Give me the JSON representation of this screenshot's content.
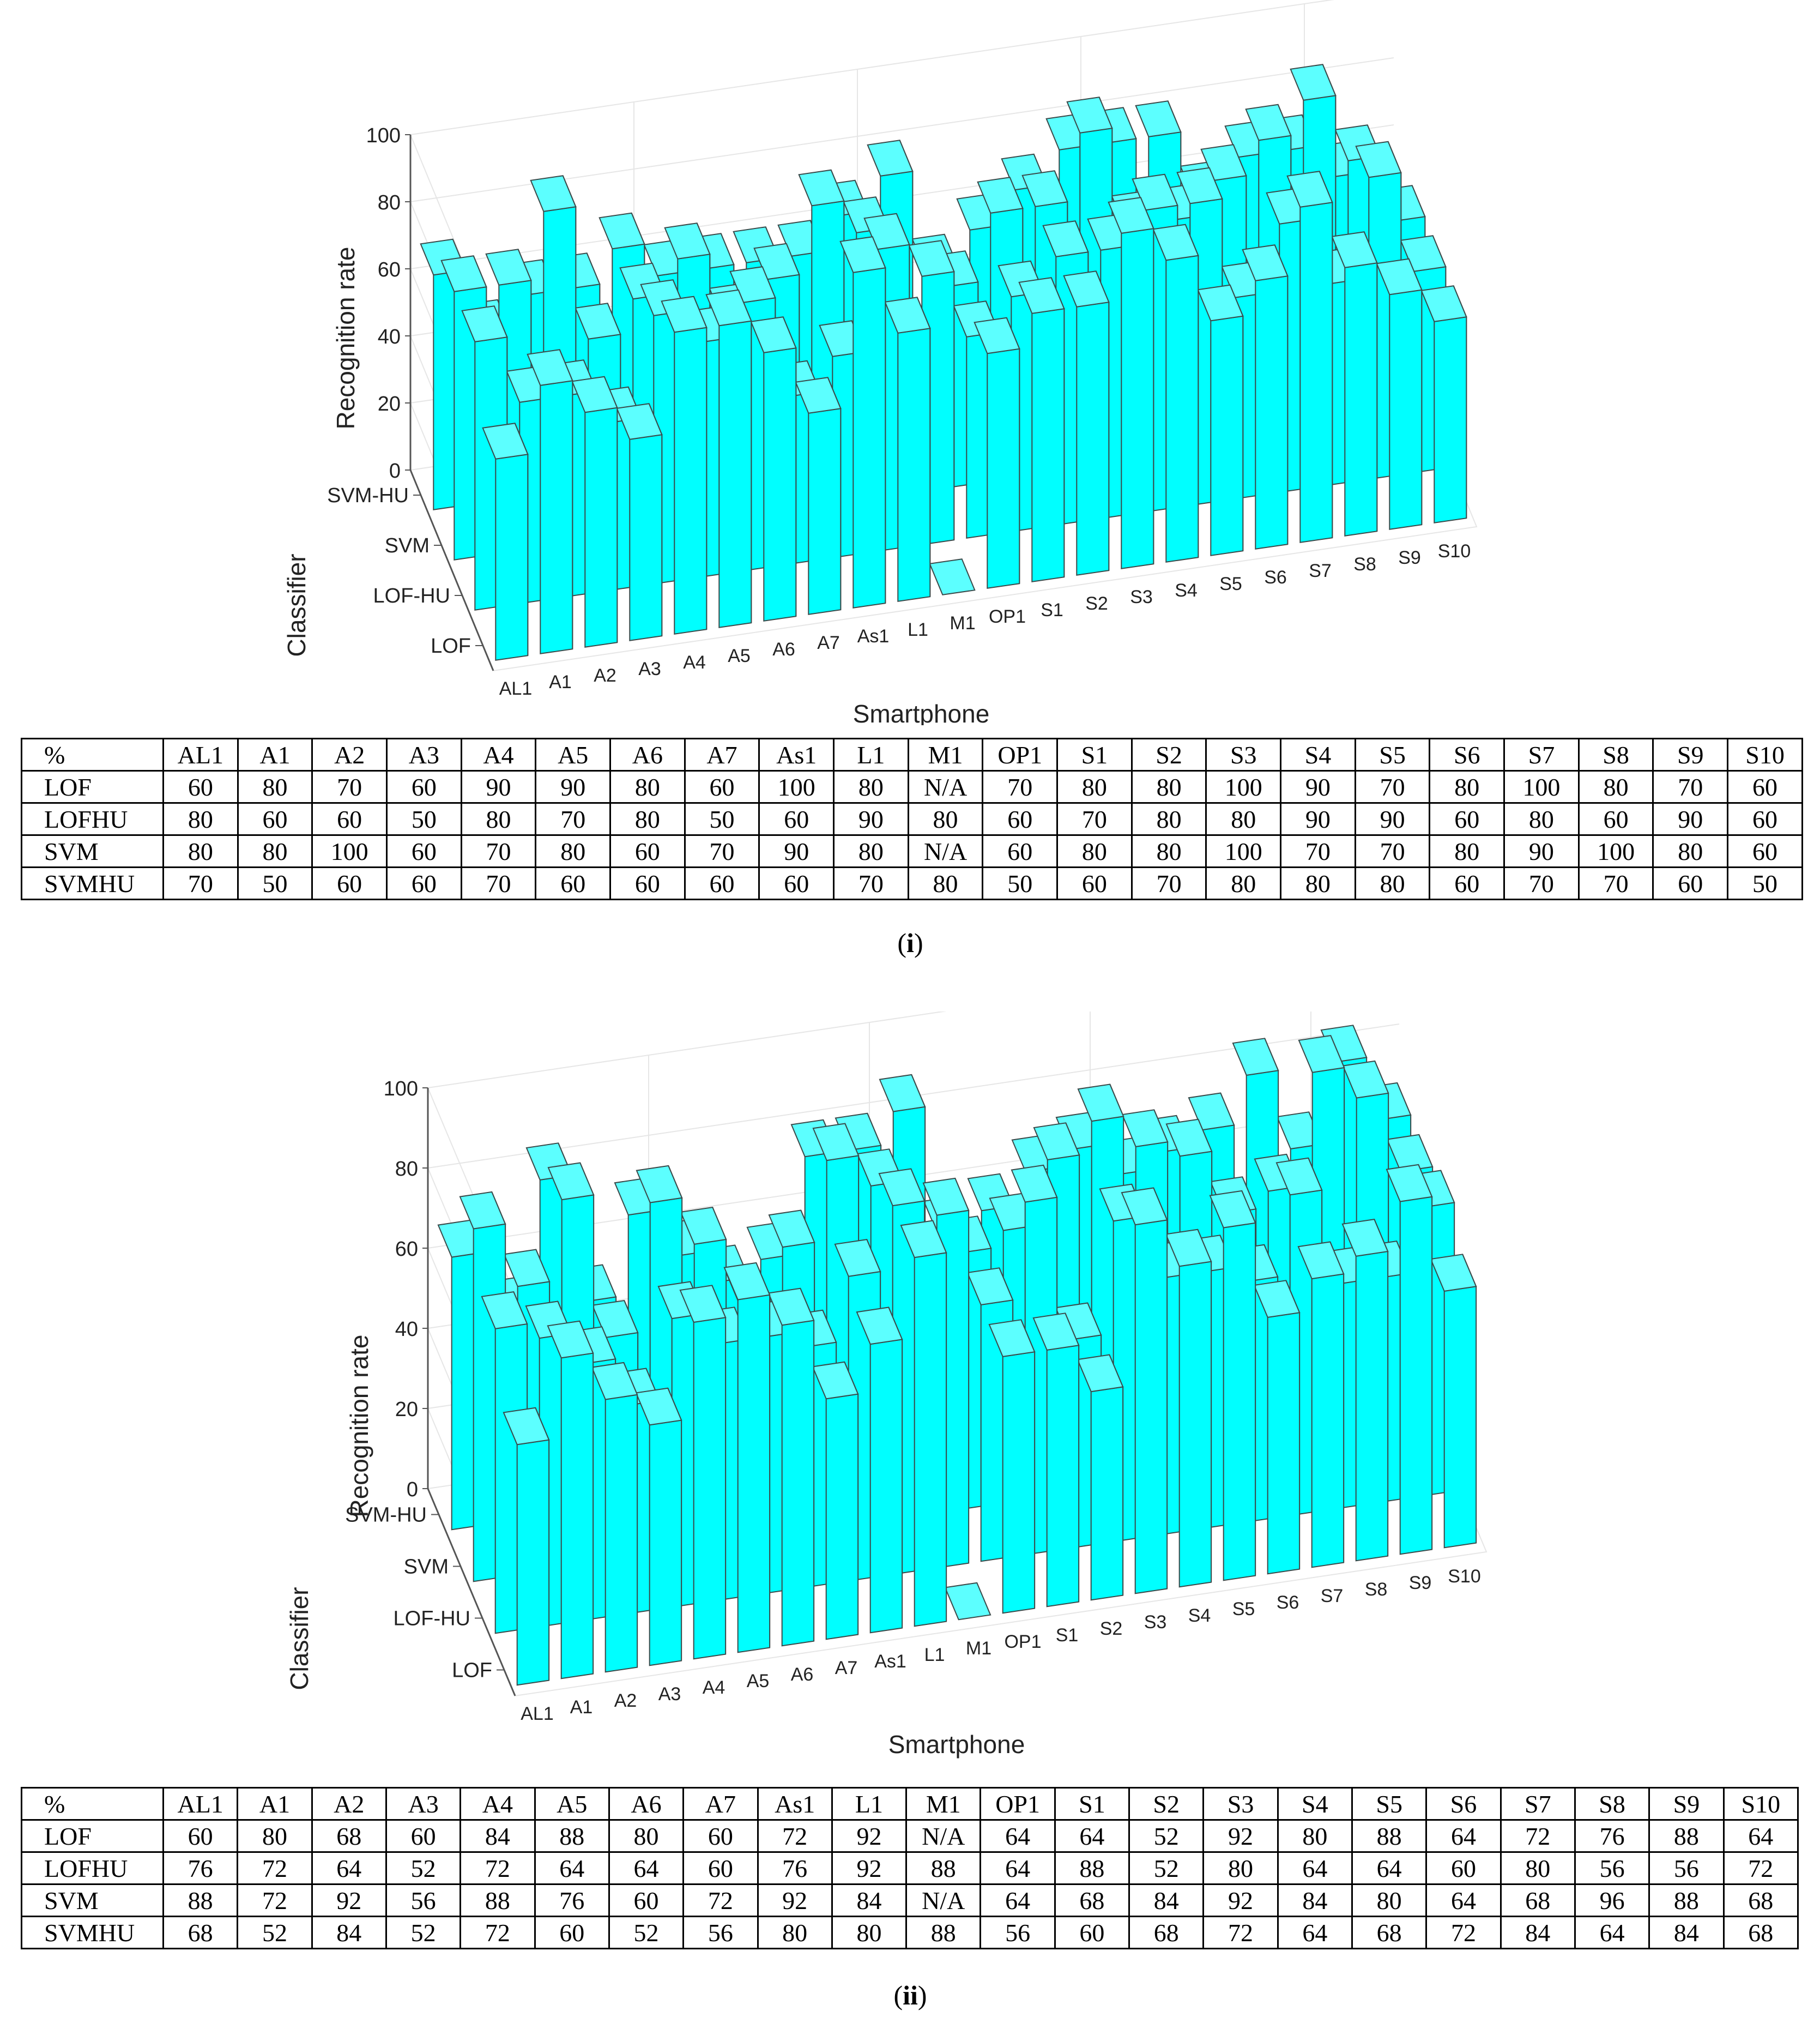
{
  "chart_data": [
    {
      "type": "bar3d",
      "panel": "i",
      "xlabel": "Smartphone",
      "ylabel": "Classifier",
      "zlabel": "Recognition rate",
      "zlim": [
        0,
        100
      ],
      "zticks": [
        "0",
        "20",
        "40",
        "60",
        "80",
        "100"
      ],
      "categories": [
        "AL1",
        "A1",
        "A2",
        "A3",
        "A4",
        "A5",
        "A6",
        "A7",
        "As1",
        "L1",
        "M1",
        "OP1",
        "S1",
        "S2",
        "S3",
        "S4",
        "S5",
        "S6",
        "S7",
        "S8",
        "S9",
        "S10"
      ],
      "classifier_ticks": [
        "LOF",
        "LOF-HU",
        "SVM",
        "SVM-HU"
      ],
      "series": [
        {
          "name": "LOF",
          "values": [
            60,
            80,
            70,
            60,
            90,
            90,
            80,
            60,
            100,
            80,
            null,
            70,
            80,
            80,
            100,
            90,
            70,
            80,
            100,
            80,
            70,
            60
          ]
        },
        {
          "name": "LOFHU",
          "values": [
            80,
            60,
            60,
            50,
            80,
            70,
            80,
            50,
            60,
            90,
            80,
            60,
            70,
            80,
            80,
            90,
            90,
            60,
            80,
            60,
            90,
            60
          ]
        },
        {
          "name": "SVM",
          "values": [
            80,
            80,
            100,
            60,
            70,
            80,
            60,
            70,
            90,
            80,
            null,
            60,
            80,
            80,
            100,
            70,
            70,
            80,
            90,
            100,
            80,
            60
          ]
        },
        {
          "name": "SVMHU",
          "values": [
            70,
            50,
            60,
            60,
            70,
            60,
            60,
            60,
            60,
            70,
            80,
            50,
            60,
            70,
            80,
            80,
            80,
            60,
            70,
            70,
            60,
            50
          ]
        }
      ],
      "caption": "i"
    },
    {
      "type": "bar3d",
      "panel": "ii",
      "xlabel": "Smartphone",
      "ylabel": "Classifier",
      "zlabel": "Recognition rate",
      "zlim": [
        0,
        100
      ],
      "zticks": [
        "0",
        "20",
        "40",
        "60",
        "80",
        "100"
      ],
      "categories": [
        "AL1",
        "A1",
        "A2",
        "A3",
        "A4",
        "A5",
        "A6",
        "A7",
        "As1",
        "L1",
        "M1",
        "OP1",
        "S1",
        "S2",
        "S3",
        "S4",
        "S5",
        "S6",
        "S7",
        "S8",
        "S9",
        "S10"
      ],
      "classifier_ticks": [
        "LOF",
        "LOF-HU",
        "SVM",
        "SVM-HU"
      ],
      "series": [
        {
          "name": "LOF",
          "values": [
            60,
            80,
            68,
            60,
            84,
            88,
            80,
            60,
            72,
            92,
            null,
            64,
            64,
            52,
            92,
            80,
            88,
            64,
            72,
            76,
            88,
            64
          ]
        },
        {
          "name": "LOFHU",
          "values": [
            76,
            72,
            64,
            52,
            72,
            64,
            64,
            60,
            76,
            92,
            88,
            64,
            88,
            52,
            80,
            64,
            64,
            60,
            80,
            56,
            56,
            72
          ]
        },
        {
          "name": "SVM",
          "values": [
            88,
            72,
            92,
            56,
            88,
            76,
            60,
            72,
            92,
            84,
            null,
            64,
            68,
            84,
            92,
            84,
            80,
            64,
            68,
            96,
            88,
            68
          ]
        },
        {
          "name": "SVMHU",
          "values": [
            68,
            52,
            84,
            52,
            72,
            60,
            52,
            56,
            80,
            80,
            88,
            56,
            60,
            68,
            72,
            64,
            68,
            72,
            84,
            64,
            84,
            68
          ]
        }
      ],
      "caption": "ii"
    }
  ],
  "tables": [
    {
      "header": [
        "%",
        "AL1",
        "A1",
        "A2",
        "A3",
        "A4",
        "A5",
        "A6",
        "A7",
        "As1",
        "L1",
        "M1",
        "OP1",
        "S1",
        "S2",
        "S3",
        "S4",
        "S5",
        "S6",
        "S7",
        "S8",
        "S9",
        "S10"
      ],
      "rows": [
        [
          "LOF",
          "60",
          "80",
          "70",
          "60",
          "90",
          "90",
          "80",
          "60",
          "100",
          "80",
          "N/A",
          "70",
          "80",
          "80",
          "100",
          "90",
          "70",
          "80",
          "100",
          "80",
          "70",
          "60"
        ],
        [
          "LOFHU",
          "80",
          "60",
          "60",
          "50",
          "80",
          "70",
          "80",
          "50",
          "60",
          "90",
          "80",
          "60",
          "70",
          "80",
          "80",
          "90",
          "90",
          "60",
          "80",
          "60",
          "90",
          "60"
        ],
        [
          "SVM",
          "80",
          "80",
          "100",
          "60",
          "70",
          "80",
          "60",
          "70",
          "90",
          "80",
          "N/A",
          "60",
          "80",
          "80",
          "100",
          "70",
          "70",
          "80",
          "90",
          "100",
          "80",
          "60"
        ],
        [
          "SVMHU",
          "70",
          "50",
          "60",
          "60",
          "70",
          "60",
          "60",
          "60",
          "60",
          "70",
          "80",
          "50",
          "60",
          "70",
          "80",
          "80",
          "80",
          "60",
          "70",
          "70",
          "60",
          "50"
        ]
      ]
    },
    {
      "header": [
        "%",
        "AL1",
        "A1",
        "A2",
        "A3",
        "A4",
        "A5",
        "A6",
        "A7",
        "As1",
        "L1",
        "M1",
        "OP1",
        "S1",
        "S2",
        "S3",
        "S4",
        "S5",
        "S6",
        "S7",
        "S8",
        "S9",
        "S10"
      ],
      "rows": [
        [
          "LOF",
          "60",
          "80",
          "68",
          "60",
          "84",
          "88",
          "80",
          "60",
          "72",
          "92",
          "N/A",
          "64",
          "64",
          "52",
          "92",
          "80",
          "88",
          "64",
          "72",
          "76",
          "88",
          "64"
        ],
        [
          "LOFHU",
          "76",
          "72",
          "64",
          "52",
          "72",
          "64",
          "64",
          "60",
          "76",
          "92",
          "88",
          "64",
          "88",
          "52",
          "80",
          "64",
          "64",
          "60",
          "80",
          "56",
          "56",
          "72"
        ],
        [
          "SVM",
          "88",
          "72",
          "92",
          "56",
          "88",
          "76",
          "60",
          "72",
          "92",
          "84",
          "N/A",
          "64",
          "68",
          "84",
          "92",
          "84",
          "80",
          "64",
          "68",
          "96",
          "88",
          "68"
        ],
        [
          "SVMHU",
          "68",
          "52",
          "84",
          "52",
          "72",
          "60",
          "52",
          "56",
          "80",
          "80",
          "88",
          "56",
          "60",
          "68",
          "72",
          "64",
          "68",
          "72",
          "84",
          "64",
          "84",
          "68"
        ]
      ]
    }
  ],
  "captions": [
    {
      "open": "(",
      "label": "i",
      "close": ")"
    },
    {
      "open": "(",
      "label": "ii",
      "close": ")"
    }
  ],
  "colors": {
    "bar_face": "#00ffff",
    "bar_side": "#00d8d8",
    "bar_top": "#5cffff",
    "edge": "#3a4a4a",
    "grid": "#e6e6e6",
    "axis": "#555555"
  }
}
